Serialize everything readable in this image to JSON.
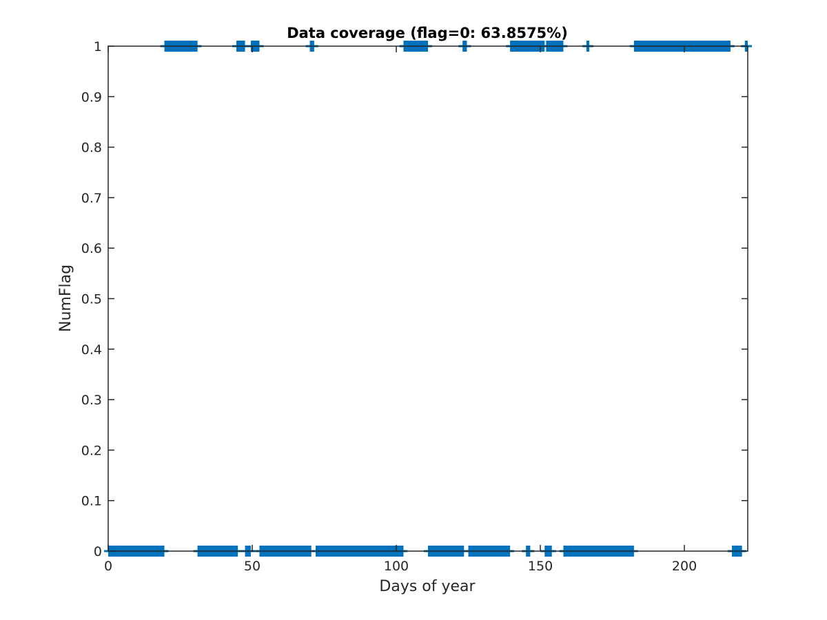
{
  "chart_data": {
    "type": "scatter",
    "title": "Data coverage (flag=0: 63.8575%)",
    "xlabel": "Days of year",
    "ylabel": "NumFlag",
    "xlim": [
      0,
      222
    ],
    "ylim": [
      0,
      1
    ],
    "xticks": [
      0,
      50,
      100,
      150,
      200
    ],
    "xtick_labels": [
      "0",
      "50",
      "100",
      "150",
      "200"
    ],
    "yticks": [
      0,
      0.1,
      0.2,
      0.3,
      0.4,
      0.5,
      0.6,
      0.7,
      0.8,
      0.9,
      1
    ],
    "ytick_labels": [
      "0",
      "0.1",
      "0.2",
      "0.3",
      "0.4",
      "0.5",
      "0.6",
      "0.7",
      "0.8",
      "0.9",
      "1"
    ],
    "grid": false,
    "marker": "+",
    "series": [
      {
        "color": "#0072BD",
        "segments": [
          {
            "y": 0,
            "x_start": 0,
            "x_end": 19.5
          },
          {
            "y": 0,
            "x_start": 31,
            "x_end": 45
          },
          {
            "y": 0,
            "x_start": 47.5,
            "x_end": 49.5
          },
          {
            "y": 0,
            "x_start": 52.5,
            "x_end": 70.5
          },
          {
            "y": 0,
            "x_start": 72,
            "x_end": 102.5
          },
          {
            "y": 0,
            "x_start": 111,
            "x_end": 123.5
          },
          {
            "y": 0,
            "x_start": 125,
            "x_end": 139.5
          },
          {
            "y": 0,
            "x_start": 145,
            "x_end": 146.5
          },
          {
            "y": 0,
            "x_start": 151.5,
            "x_end": 154
          },
          {
            "y": 0,
            "x_start": 158,
            "x_end": 182.5
          },
          {
            "y": 0,
            "x_start": 216.5,
            "x_end": 220
          },
          {
            "y": 1,
            "x_start": 19.5,
            "x_end": 31
          },
          {
            "y": 1,
            "x_start": 44.5,
            "x_end": 47.5
          },
          {
            "y": 1,
            "x_start": 49.5,
            "x_end": 52.5
          },
          {
            "y": 1,
            "x_start": 70,
            "x_end": 71.5
          },
          {
            "y": 1,
            "x_start": 102.5,
            "x_end": 111
          },
          {
            "y": 1,
            "x_start": 123,
            "x_end": 124.5
          },
          {
            "y": 1,
            "x_start": 139.5,
            "x_end": 151.5
          },
          {
            "y": 1,
            "x_start": 152,
            "x_end": 158
          },
          {
            "y": 1,
            "x_start": 166,
            "x_end": 167
          },
          {
            "y": 1,
            "x_start": 182.5,
            "x_end": 216
          },
          {
            "y": 1,
            "x_start": 221,
            "x_end": 222
          }
        ]
      }
    ]
  }
}
